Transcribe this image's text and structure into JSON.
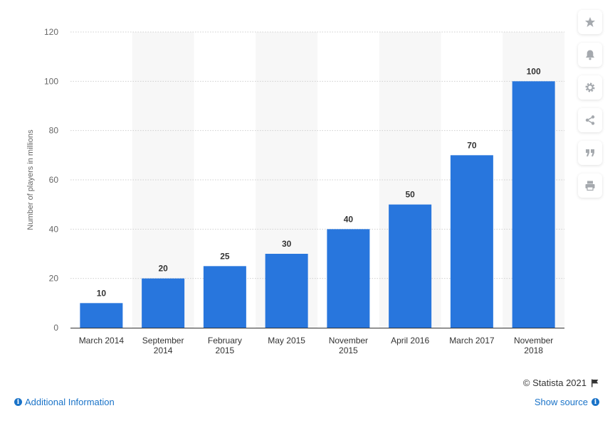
{
  "chart_data": {
    "type": "bar",
    "categories": [
      [
        "March 2014"
      ],
      [
        "September",
        "2014"
      ],
      [
        "February",
        "2015"
      ],
      [
        "May 2015"
      ],
      [
        "November",
        "2015"
      ],
      [
        "April 2016"
      ],
      [
        "March 2017"
      ],
      [
        "November",
        "2018"
      ]
    ],
    "values": [
      10,
      20,
      25,
      30,
      40,
      50,
      70,
      100
    ],
    "ylabel": "Number of players in millions",
    "ylim": [
      0,
      120
    ],
    "yticks": [
      0,
      20,
      40,
      60,
      80,
      100,
      120
    ],
    "bar_color": "#2876dd",
    "band_color": "#f7f7f7",
    "grid": true
  },
  "toolbar": {
    "icons": [
      "star-icon",
      "bell-icon",
      "gear-icon",
      "share-icon",
      "quote-icon",
      "print-icon"
    ],
    "icon_color": "#a5a9ae"
  },
  "footer": {
    "additional_info": "Additional Information",
    "credit": "© Statista 2021",
    "show_source": "Show source",
    "link_color": "#1a73c8"
  }
}
